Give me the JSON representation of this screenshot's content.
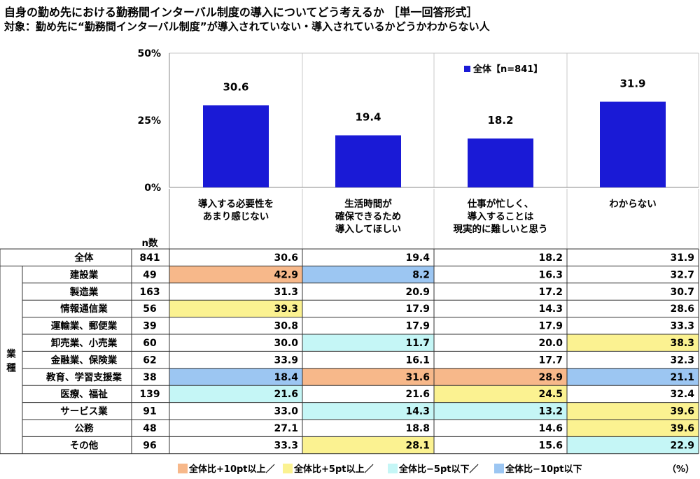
{
  "title": "自身の勤め先における勤務間インターバル制度の導入についてどう考えるか ［単一回答形式］",
  "subtitle": "対象：勤め先に“勤務間インターバル制度”が導入されていない・導入されているかどうかわからない人",
  "colors": {
    "bar": "#1a1ad6",
    "plus10": "#f7b88a",
    "plus5": "#fbf291",
    "minus5": "#c5f6f6",
    "minus10": "#9cc6f2",
    "grid": "#c8c8c8"
  },
  "chart_data": {
    "type": "bar",
    "categories": [
      "導入する必要性を\nあまり感じない",
      "生活時間が\n確保できるため\n導入してほしい",
      "仕事が忙しく、\n導入することは\n現実的に難しいと思う",
      "わからない"
    ],
    "series": [
      {
        "name": "全体【n=841】",
        "values": [
          30.6,
          19.4,
          18.2,
          31.9
        ]
      }
    ],
    "yticks": [
      "0%",
      "25%",
      "50%"
    ],
    "ylim": [
      0,
      50
    ],
    "legend_position": "top-right"
  },
  "table": {
    "n_header": "n数",
    "group_label": "業種",
    "unit": "（%）",
    "rows": [
      {
        "label": "全体",
        "n": "841",
        "values": [
          "30.6",
          "19.4",
          "18.2",
          "31.9"
        ],
        "flags": [
          "",
          "",
          "",
          ""
        ]
      },
      {
        "label": "建設業",
        "n": "49",
        "values": [
          "42.9",
          "8.2",
          "16.3",
          "32.7"
        ],
        "flags": [
          "p10",
          "m10",
          "",
          ""
        ]
      },
      {
        "label": "製造業",
        "n": "163",
        "values": [
          "31.3",
          "20.9",
          "17.2",
          "30.7"
        ],
        "flags": [
          "",
          "",
          "",
          ""
        ]
      },
      {
        "label": "情報通信業",
        "n": "56",
        "values": [
          "39.3",
          "17.9",
          "14.3",
          "28.6"
        ],
        "flags": [
          "p5",
          "",
          "",
          ""
        ]
      },
      {
        "label": "運輸業、郵便業",
        "n": "39",
        "values": [
          "30.8",
          "17.9",
          "17.9",
          "33.3"
        ],
        "flags": [
          "",
          "",
          "",
          ""
        ]
      },
      {
        "label": "卸売業、小売業",
        "n": "60",
        "values": [
          "30.0",
          "11.7",
          "20.0",
          "38.3"
        ],
        "flags": [
          "",
          "m5",
          "",
          "p5"
        ]
      },
      {
        "label": "金融業、保険業",
        "n": "62",
        "values": [
          "33.9",
          "16.1",
          "17.7",
          "32.3"
        ],
        "flags": [
          "",
          "",
          "",
          ""
        ]
      },
      {
        "label": "教育、学習支援業",
        "n": "38",
        "values": [
          "18.4",
          "31.6",
          "28.9",
          "21.1"
        ],
        "flags": [
          "m10",
          "p10",
          "p10",
          "m10"
        ]
      },
      {
        "label": "医療、福祉",
        "n": "139",
        "values": [
          "21.6",
          "21.6",
          "24.5",
          "32.4"
        ],
        "flags": [
          "m5",
          "",
          "p5",
          ""
        ]
      },
      {
        "label": "サービス業",
        "n": "91",
        "values": [
          "33.0",
          "14.3",
          "13.2",
          "39.6"
        ],
        "flags": [
          "",
          "m5",
          "m5",
          "p5"
        ]
      },
      {
        "label": "公務",
        "n": "48",
        "values": [
          "27.1",
          "18.8",
          "14.6",
          "39.6"
        ],
        "flags": [
          "",
          "",
          "",
          "p5"
        ]
      },
      {
        "label": "その他",
        "n": "96",
        "values": [
          "33.3",
          "28.1",
          "15.6",
          "22.9"
        ],
        "flags": [
          "",
          "p5",
          "",
          "m5"
        ]
      }
    ]
  },
  "legend": [
    {
      "key": "p10",
      "label": "全体比+10pt以上／"
    },
    {
      "key": "p5",
      "label": "全体比+5pt以上／"
    },
    {
      "key": "m5",
      "label": "全体比−5pt以下／"
    },
    {
      "key": "m10",
      "label": "全体比−10pt以下"
    }
  ]
}
